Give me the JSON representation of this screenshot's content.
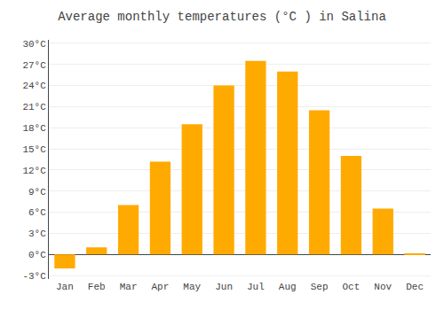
{
  "chart_data": {
    "type": "bar",
    "title": "Average monthly temperatures (°C ) in Salina",
    "categories": [
      "Jan",
      "Feb",
      "Mar",
      "Apr",
      "May",
      "Jun",
      "Jul",
      "Aug",
      "Sep",
      "Oct",
      "Nov",
      "Dec"
    ],
    "values": [
      -2.0,
      1.0,
      7.0,
      13.2,
      18.5,
      24.0,
      27.5,
      26.0,
      20.5,
      14.0,
      6.5,
      0.1
    ],
    "color": "#FFAA00",
    "ylim": [
      -3.5,
      30.5
    ],
    "yticks": [
      {
        "value": -3,
        "label": "-3°C"
      },
      {
        "value": 0,
        "label": "0°C"
      },
      {
        "value": 3,
        "label": "3°C"
      },
      {
        "value": 6,
        "label": "6°C"
      },
      {
        "value": 9,
        "label": "9°C"
      },
      {
        "value": 12,
        "label": "12°C"
      },
      {
        "value": 15,
        "label": "15°C"
      },
      {
        "value": 18,
        "label": "18°C"
      },
      {
        "value": 21,
        "label": "21°C"
      },
      {
        "value": 24,
        "label": "24°C"
      },
      {
        "value": 27,
        "label": "27°C"
      },
      {
        "value": 30,
        "label": "30°C"
      }
    ],
    "grid": true
  }
}
